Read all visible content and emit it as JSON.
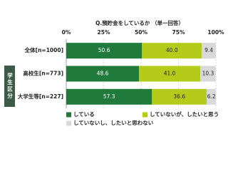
{
  "chart_data": {
    "type": "bar",
    "orientation": "horizontal",
    "stacked": true,
    "title": "Q.預貯金をしているか （単一回答）",
    "categories": [
      "全体[n=1000]",
      "高校生[n=773]",
      "大学生等[n=227]"
    ],
    "group_label": "学生区分",
    "series": [
      {
        "name": "している",
        "color": "#1f7a3c",
        "values": [
          50.6,
          48.6,
          57.3
        ],
        "value_labels": [
          "50.6",
          "48.6",
          "57.3"
        ]
      },
      {
        "name": "していないが、したいと思う",
        "color": "#b4cb1a",
        "values": [
          40.0,
          41.0,
          36.6
        ],
        "value_labels": [
          "40.0",
          "41.0",
          "36.6"
        ]
      },
      {
        "name": "していないし、したいと思わない",
        "color": "#d9d9d9",
        "values": [
          9.4,
          10.3,
          6.2
        ],
        "value_labels": [
          "9.4",
          "10.3",
          "6.2"
        ]
      }
    ],
    "xlim": [
      0,
      100
    ],
    "xticks": [
      {
        "value": 0,
        "label": "0%"
      },
      {
        "value": 25,
        "label": "25%"
      },
      {
        "value": 50,
        "label": "50%"
      },
      {
        "value": 75,
        "label": "75%"
      },
      {
        "value": 100,
        "label": "100%"
      }
    ],
    "grid": true
  }
}
